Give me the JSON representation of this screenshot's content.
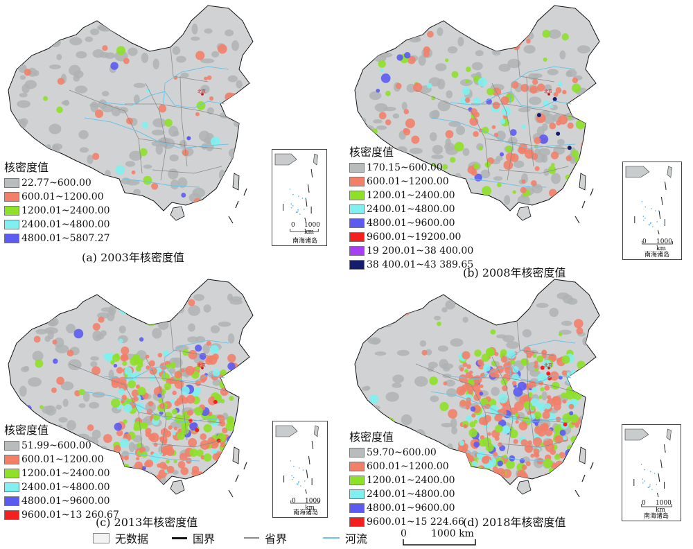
{
  "panels": [
    {
      "id": "2003",
      "caption": "(a) 2003年核密度值",
      "legend_title": "核密度值",
      "classes": [
        {
          "label": "22.77~600.00",
          "color": "#b9bcbc"
        },
        {
          "label": "600.01~1200.00",
          "color": "#f28069"
        },
        {
          "label": "1200.01~2400.00",
          "color": "#8ee028"
        },
        {
          "label": "2400.01~4800.00",
          "color": "#7fefef"
        },
        {
          "label": "4800.01~5807.27",
          "color": "#5b5bf2"
        }
      ],
      "city_label": "北京",
      "inset": {
        "scale_zero": "0",
        "scale_max": "1000 km",
        "name": "南海诸岛"
      }
    },
    {
      "id": "2008",
      "caption": "(b) 2008年核密度值",
      "legend_title": "核密度值",
      "classes": [
        {
          "label": "170.15~600.00",
          "color": "#b9bcbc"
        },
        {
          "label": "600.01~1200.00",
          "color": "#f28069"
        },
        {
          "label": "1200.01~2400.00",
          "color": "#8ee028"
        },
        {
          "label": "2400.01~4800.00",
          "color": "#7fefef"
        },
        {
          "label": "4800.01~9600.00",
          "color": "#5b5bf2"
        },
        {
          "label": "9600.01~19200.00",
          "color": "#f41f1f"
        },
        {
          "label": "19 200.01~38 400.00",
          "color": "#a640f2"
        },
        {
          "label": "38 400.01~43 389.65",
          "color": "#141d6b"
        }
      ],
      "city_label": "北京",
      "inset": {
        "scale_zero": "0",
        "scale_max": "1000 km",
        "name": "南海诸岛"
      }
    },
    {
      "id": "2013",
      "caption": "(c) 2013年核密度值",
      "legend_title": "核密度值",
      "classes": [
        {
          "label": "51.99~600.00",
          "color": "#b9bcbc"
        },
        {
          "label": "600.01~1200.00",
          "color": "#f28069"
        },
        {
          "label": "1200.01~2400.00",
          "color": "#8ee028"
        },
        {
          "label": "2400.01~4800.00",
          "color": "#7fefef"
        },
        {
          "label": "4800.01~9600.00",
          "color": "#5b5bf2"
        },
        {
          "label": "9600.01~13 260.67",
          "color": "#f41f1f"
        }
      ],
      "city_label": "北京",
      "inset": {
        "scale_zero": "0",
        "scale_max": "1000 km",
        "name": "南海诸岛"
      }
    },
    {
      "id": "2018",
      "caption": "(d) 2018年核密度值",
      "legend_title": "核密度值",
      "classes": [
        {
          "label": "59.70~600.00",
          "color": "#b9bcbc"
        },
        {
          "label": "600.01~1200.00",
          "color": "#f28069"
        },
        {
          "label": "1200.01~2400.00",
          "color": "#8ee028"
        },
        {
          "label": "2400.01~4800.00",
          "color": "#7fefef"
        },
        {
          "label": "4800.01~9600.00",
          "color": "#5b5bf2"
        },
        {
          "label": "9600.01~15 224.66",
          "color": "#f41f1f"
        }
      ],
      "city_label": "北京",
      "inset": {
        "scale_zero": "0",
        "scale_max": "1000 km",
        "name": "南海诸岛"
      }
    }
  ],
  "bottom_legend": {
    "no_data": "无数据",
    "national_border": "国界",
    "provincial_border": "省界",
    "river": "河流",
    "scale_zero": "0",
    "scale_max": "1000 km"
  },
  "colors": {
    "land": "#d0d2d3",
    "no_data_fill": "#f3f3f3",
    "national_border": "#111111",
    "provincial_border": "#8a8a8a",
    "river": "#6cc3ea"
  }
}
